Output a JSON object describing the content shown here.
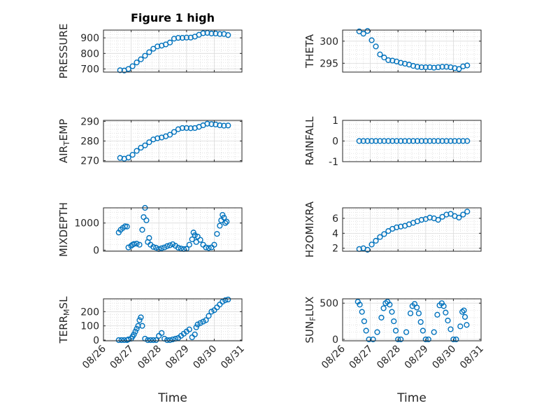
{
  "figure": {
    "title": "Figure 1 high",
    "xlabel": "Time",
    "marker_color": "#0072BD",
    "x_tick_labels": [
      "08/26",
      "08/27",
      "08/28",
      "08/29",
      "08/30",
      "08/31"
    ]
  },
  "chart_data": [
    {
      "type": "scatter",
      "name": "PRESSURE",
      "title": "Figure 1 high",
      "ylabel": "PRESSURE",
      "xlabel": "",
      "xlim": [
        0,
        5
      ],
      "ylim": [
        680,
        950
      ],
      "yticks": [
        700,
        800,
        900
      ],
      "ytick_labels": [
        "700",
        "800",
        "900"
      ],
      "x": [
        0.6,
        0.75,
        0.9,
        1.05,
        1.2,
        1.35,
        1.5,
        1.65,
        1.8,
        1.95,
        2.1,
        2.25,
        2.4,
        2.55,
        2.7,
        2.85,
        3.0,
        3.15,
        3.3,
        3.45,
        3.6,
        3.75,
        3.9,
        4.05,
        4.2,
        4.35,
        4.5
      ],
      "y": [
        692,
        690,
        700,
        718,
        742,
        762,
        785,
        808,
        830,
        845,
        850,
        858,
        870,
        895,
        900,
        900,
        902,
        902,
        908,
        920,
        930,
        932,
        928,
        928,
        925,
        925,
        918
      ]
    },
    {
      "type": "scatter",
      "name": "THETA",
      "ylabel": "THETA",
      "xlabel": "",
      "xlim": [
        0,
        5
      ],
      "ylim": [
        293,
        302.5
      ],
      "yticks": [
        295,
        300
      ],
      "ytick_labels": [
        "295",
        "300"
      ],
      "x": [
        0.6,
        0.75,
        0.9,
        1.05,
        1.2,
        1.35,
        1.5,
        1.65,
        1.8,
        1.95,
        2.1,
        2.25,
        2.4,
        2.55,
        2.7,
        2.85,
        3.0,
        3.15,
        3.3,
        3.45,
        3.6,
        3.75,
        3.9,
        4.05,
        4.2,
        4.35,
        4.5
      ],
      "y": [
        302.2,
        301.7,
        302.3,
        300.2,
        298.8,
        297.0,
        296.3,
        295.7,
        295.6,
        295.4,
        295.1,
        294.9,
        294.7,
        294.4,
        294.2,
        294.1,
        294.1,
        294.1,
        294.0,
        294.1,
        294.2,
        294.2,
        294.1,
        293.9,
        293.7,
        294.3,
        294.5
      ]
    },
    {
      "type": "scatter",
      "name": "AIR_TEMP",
      "ylabel": "AIR_TEMP",
      "xlabel": "",
      "xlim": [
        0,
        5
      ],
      "ylim": [
        269.5,
        290.5
      ],
      "yticks": [
        270,
        280,
        290
      ],
      "ytick_labels": [
        "270",
        "280",
        "290"
      ],
      "x": [
        0.6,
        0.75,
        0.9,
        1.05,
        1.2,
        1.35,
        1.5,
        1.65,
        1.8,
        1.95,
        2.1,
        2.25,
        2.4,
        2.55,
        2.7,
        2.85,
        3.0,
        3.15,
        3.3,
        3.45,
        3.6,
        3.75,
        3.9,
        4.05,
        4.2,
        4.35,
        4.5
      ],
      "y": [
        271.4,
        271.0,
        271.6,
        273.0,
        275.0,
        276.6,
        277.8,
        279.4,
        280.8,
        281.4,
        281.8,
        282.4,
        283.2,
        284.6,
        286.0,
        286.6,
        286.6,
        286.5,
        286.6,
        287.2,
        288.0,
        288.8,
        288.6,
        288.4,
        288.0,
        287.8,
        287.9
      ]
    },
    {
      "type": "scatter",
      "name": "RAINFALL",
      "ylabel": "RAINFALL",
      "xlabel": "",
      "xlim": [
        0,
        5
      ],
      "ylim": [
        -1,
        1
      ],
      "yticks": [
        -1,
        0,
        1
      ],
      "ytick_labels": [
        "-1",
        "0",
        "1"
      ],
      "x": [
        0.6,
        0.75,
        0.9,
        1.05,
        1.2,
        1.35,
        1.5,
        1.65,
        1.8,
        1.95,
        2.1,
        2.25,
        2.4,
        2.55,
        2.7,
        2.85,
        3.0,
        3.15,
        3.3,
        3.45,
        3.6,
        3.75,
        3.9,
        4.05,
        4.2,
        4.35,
        4.5
      ],
      "y": [
        0,
        0,
        0,
        0,
        0,
        0,
        0,
        0,
        0,
        0,
        0,
        0,
        0,
        0,
        0,
        0,
        0,
        0,
        0,
        0,
        0,
        0,
        0,
        0,
        0,
        0,
        0
      ]
    },
    {
      "type": "scatter",
      "name": "MIXDEPTH",
      "ylabel": "MIXDEPTH",
      "xlabel": "",
      "xlim": [
        0,
        5
      ],
      "ylim": [
        -40,
        1560
      ],
      "yticks": [
        0,
        1000
      ],
      "ytick_labels": [
        "0",
        "1000"
      ],
      "x": [
        0.55,
        0.62,
        0.7,
        0.78,
        0.85,
        0.9,
        1.0,
        1.05,
        1.1,
        1.2,
        1.3,
        1.4,
        1.45,
        1.5,
        1.55,
        1.6,
        1.65,
        1.7,
        1.8,
        1.9,
        2.0,
        2.1,
        2.2,
        2.3,
        2.4,
        2.5,
        2.6,
        2.7,
        2.8,
        2.9,
        3.0,
        3.1,
        3.2,
        3.25,
        3.3,
        3.35,
        3.4,
        3.5,
        3.6,
        3.7,
        3.8,
        3.9,
        4.0,
        4.1,
        4.2,
        4.25,
        4.3,
        4.35,
        4.4,
        4.45
      ],
      "y": [
        650,
        750,
        820,
        880,
        870,
        100,
        160,
        200,
        230,
        240,
        200,
        750,
        1220,
        1560,
        1100,
        300,
        450,
        200,
        120,
        90,
        40,
        70,
        100,
        150,
        180,
        220,
        160,
        90,
        60,
        40,
        50,
        200,
        400,
        650,
        550,
        300,
        500,
        380,
        200,
        100,
        80,
        100,
        200,
        600,
        900,
        1100,
        1300,
        1200,
        1000,
        1050
      ]
    },
    {
      "type": "scatter",
      "name": "H2OMIXRA",
      "ylabel": "H2OMIXRA",
      "xlabel": "",
      "xlim": [
        0,
        5
      ],
      "ylim": [
        1.6,
        7.4
      ],
      "yticks": [
        2,
        4,
        6
      ],
      "ytick_labels": [
        "2",
        "4",
        "6"
      ],
      "x": [
        0.6,
        0.75,
        0.9,
        1.05,
        1.2,
        1.35,
        1.5,
        1.65,
        1.8,
        1.95,
        2.1,
        2.25,
        2.4,
        2.55,
        2.7,
        2.85,
        3.0,
        3.15,
        3.3,
        3.45,
        3.6,
        3.75,
        3.9,
        4.05,
        4.2,
        4.35,
        4.5
      ],
      "y": [
        1.9,
        2.0,
        1.8,
        2.5,
        3.0,
        3.5,
        3.9,
        4.3,
        4.6,
        4.8,
        4.9,
        5.0,
        5.2,
        5.4,
        5.6,
        5.8,
        5.9,
        6.1,
        6.0,
        5.8,
        6.2,
        6.5,
        6.6,
        6.3,
        6.1,
        6.5,
        6.9
      ]
    },
    {
      "type": "scatter",
      "name": "TERR_MSL",
      "ylabel": "TERR_MSL",
      "xlabel": "Time",
      "xlim": [
        0,
        5
      ],
      "ylim": [
        -5,
        290
      ],
      "yticks": [
        0,
        100,
        200
      ],
      "ytick_labels": [
        "0",
        "100",
        "200"
      ],
      "x": [
        0.55,
        0.65,
        0.75,
        0.85,
        0.9,
        1.0,
        1.05,
        1.1,
        1.15,
        1.2,
        1.25,
        1.3,
        1.35,
        1.4,
        1.5,
        1.6,
        1.7,
        1.8,
        1.9,
        2.0,
        2.1,
        2.2,
        2.3,
        2.4,
        2.5,
        2.6,
        2.7,
        2.8,
        2.9,
        3.0,
        3.1,
        3.2,
        3.3,
        3.35,
        3.4,
        3.5,
        3.6,
        3.7,
        3.8,
        3.9,
        4.0,
        4.1,
        4.2,
        4.3,
        4.4,
        4.5
      ],
      "y": [
        0,
        0,
        0,
        0,
        5,
        10,
        25,
        40,
        60,
        80,
        100,
        140,
        160,
        100,
        10,
        0,
        0,
        0,
        0,
        30,
        50,
        10,
        0,
        0,
        5,
        10,
        15,
        30,
        45,
        60,
        75,
        20,
        40,
        90,
        110,
        120,
        130,
        140,
        170,
        200,
        210,
        230,
        250,
        270,
        280,
        285
      ]
    },
    {
      "type": "scatter",
      "name": "SUN_FLUX",
      "ylabel": "SUN_FLUX",
      "xlabel": "Time",
      "xlim": [
        0,
        5
      ],
      "ylim": [
        -20,
        560
      ],
      "yticks": [
        0,
        500
      ],
      "ytick_labels": [
        "0",
        "500"
      ],
      "x": [
        0.55,
        0.62,
        0.7,
        0.78,
        0.85,
        0.95,
        1.1,
        1.25,
        1.4,
        1.48,
        1.55,
        1.62,
        1.7,
        1.78,
        1.85,
        1.92,
        2.0,
        2.1,
        2.3,
        2.45,
        2.52,
        2.6,
        2.68,
        2.75,
        2.82,
        2.9,
        3.0,
        3.1,
        3.3,
        3.42,
        3.5,
        3.58,
        3.65,
        3.72,
        3.8,
        3.9,
        4.0,
        4.1,
        4.25,
        4.32,
        4.38,
        4.42,
        4.48
      ],
      "y": [
        520,
        480,
        380,
        250,
        120,
        0,
        0,
        100,
        300,
        430,
        500,
        520,
        480,
        380,
        250,
        120,
        0,
        0,
        100,
        360,
        460,
        490,
        440,
        360,
        240,
        120,
        0,
        0,
        100,
        340,
        470,
        500,
        460,
        370,
        260,
        140,
        0,
        0,
        180,
        380,
        400,
        310,
        200
      ]
    }
  ]
}
